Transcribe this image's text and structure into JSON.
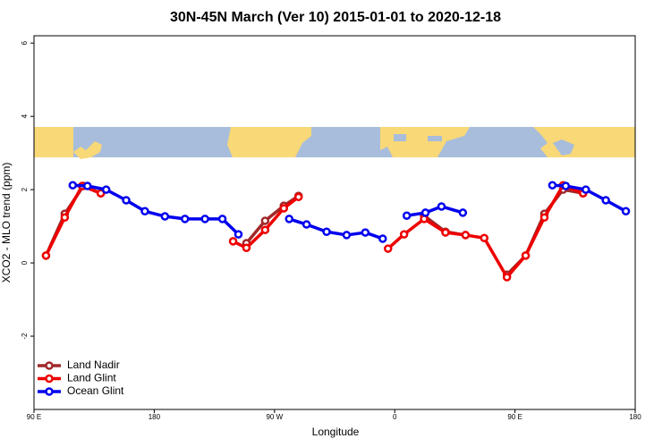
{
  "chart_data": {
    "type": "line",
    "title": "30N-45N March (Ver 10)   2015-01-01 to 2020-12-18",
    "x_label": "Longitude",
    "y_label": "XCO2 - MLO trend (ppm)",
    "xlim": [
      90,
      540
    ],
    "ylim": [
      -4,
      6.2
    ],
    "xticks": [
      {
        "value": 90,
        "label": "90 E"
      },
      {
        "value": 180,
        "label": "180"
      },
      {
        "value": 270,
        "label": "90 W"
      },
      {
        "value": 360,
        "label": "0"
      },
      {
        "value": 450,
        "label": "90 E"
      },
      {
        "value": 540,
        "label": "180"
      }
    ],
    "yticks": [
      -2,
      0,
      2,
      4,
      6
    ],
    "legend": "bottom-left",
    "series": [
      {
        "name": "Land Nadir",
        "color": "#a0282a",
        "x": [
          99,
          113,
          127,
          140,
          null,
          249,
          263,
          277,
          288,
          null,
          382,
          398,
          413,
          null,
          444,
          458,
          472,
          486,
          501
        ],
        "values": [
          0.2,
          1.34,
          2.1,
          1.9,
          null,
          0.54,
          1.15,
          1.56,
          1.83,
          null,
          1.29,
          0.85,
          0.76,
          null,
          -0.32,
          0.2,
          1.34,
          2.0,
          1.9
        ]
      },
      {
        "name": "Land Glint",
        "color": "#ee0000",
        "x": [
          99,
          113,
          126,
          140,
          null,
          239,
          249,
          263,
          277,
          288,
          null,
          355,
          367,
          382,
          398,
          413,
          427,
          444,
          458,
          472,
          486,
          501
        ],
        "values": [
          0.2,
          1.24,
          2.1,
          1.9,
          null,
          0.59,
          0.41,
          0.9,
          1.49,
          1.8,
          null,
          0.39,
          0.78,
          1.2,
          0.83,
          0.76,
          0.68,
          -0.39,
          0.2,
          1.24,
          2.12,
          1.9
        ]
      },
      {
        "name": "Ocean Glint",
        "color": "#0000ee",
        "x": [
          119,
          130,
          144,
          159,
          173,
          188,
          203,
          218,
          231,
          243,
          null,
          281,
          294,
          309,
          324,
          338,
          351,
          null,
          369,
          383,
          395,
          411,
          null,
          478,
          488,
          503,
          518,
          533
        ],
        "values": [
          2.12,
          2.1,
          2.0,
          1.71,
          1.41,
          1.27,
          1.2,
          1.2,
          1.2,
          0.78,
          null,
          1.2,
          1.05,
          0.85,
          0.76,
          0.83,
          0.66,
          null,
          1.29,
          1.37,
          1.54,
          1.37,
          null,
          2.12,
          2.1,
          2.0,
          1.71,
          1.41
        ]
      }
    ]
  }
}
